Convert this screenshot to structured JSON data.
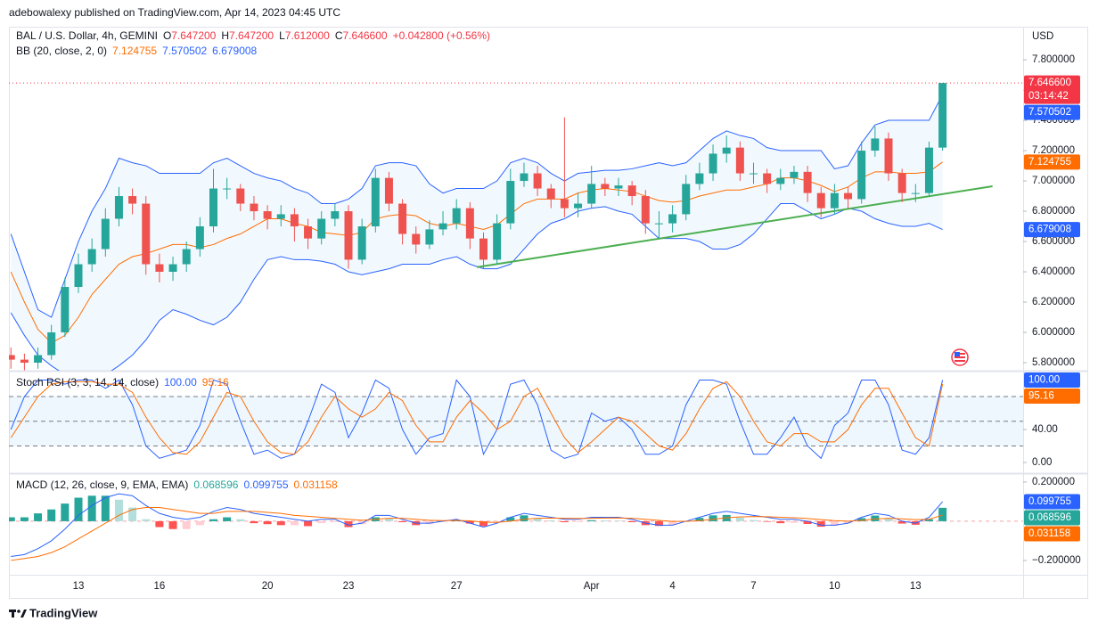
{
  "header": {
    "publisher": "adebowalexy published on TradingView.com, Apr 14, 2023 04:45 UTC",
    "footer": "TradingView"
  },
  "chart_data": [
    {
      "type": "candlestick",
      "title": "BAL / U.S. Dollar, 4h, GEMINI",
      "currency": "USD",
      "ohlc_header": [
        {
          "k": "O",
          "v": "7.647200"
        },
        {
          "k": "H",
          "v": "7.647200"
        },
        {
          "k": "L",
          "v": "7.612000"
        },
        {
          "k": "C",
          "v": "7.646600"
        }
      ],
      "change": "+0.042800 (+0.56%)",
      "header_color": "#f23645",
      "categories": [
        null,
        null,
        null,
        null,
        null,
        "13",
        null,
        null,
        null,
        null,
        null,
        "16",
        null,
        null,
        null,
        null,
        null,
        null,
        null,
        "20",
        null,
        null,
        null,
        null,
        null,
        "23",
        null,
        null,
        null,
        null,
        null,
        null,
        null,
        "27",
        null,
        null,
        null,
        null,
        null,
        null,
        null,
        null,
        null,
        "Apr",
        null,
        null,
        null,
        null,
        null,
        "4",
        null,
        null,
        null,
        null,
        null,
        "7",
        null,
        null,
        null,
        null,
        null,
        "10",
        null,
        null,
        null,
        null,
        null,
        "13",
        null,
        null
      ],
      "open": [
        5.85,
        5.82,
        5.8,
        5.85,
        6.0,
        6.3,
        6.45,
        6.55,
        6.75,
        6.9,
        6.85,
        6.45,
        6.4,
        6.45,
        6.55,
        6.7,
        6.95,
        6.95,
        6.85,
        6.8,
        6.75,
        6.78,
        6.7,
        6.62,
        6.75,
        6.8,
        6.48,
        6.7,
        7.02,
        6.85,
        6.65,
        6.58,
        6.68,
        6.72,
        6.82,
        6.62,
        6.48,
        6.72,
        7.0,
        7.05,
        6.95,
        6.88,
        6.82,
        6.85,
        6.98,
        6.95,
        6.97,
        6.9,
        6.72,
        6.72,
        6.78,
        6.98,
        7.05,
        7.18,
        7.22,
        7.05,
        7.05,
        6.98,
        7.02,
        7.06,
        6.92,
        6.82,
        6.92,
        6.88,
        7.2,
        7.28,
        7.05,
        6.92,
        6.92,
        7.22
      ],
      "high": [
        5.9,
        5.86,
        5.9,
        6.05,
        6.36,
        6.52,
        6.62,
        6.82,
        6.96,
        6.95,
        6.9,
        6.52,
        6.5,
        6.6,
        6.76,
        7.08,
        7.02,
        6.98,
        6.9,
        6.84,
        6.84,
        6.82,
        6.75,
        6.8,
        6.85,
        6.84,
        6.75,
        7.08,
        7.06,
        6.88,
        6.7,
        6.74,
        6.8,
        6.88,
        6.86,
        6.66,
        6.78,
        7.08,
        7.12,
        7.1,
        6.98,
        7.42,
        6.92,
        7.1,
        7.02,
        7.02,
        7.0,
        6.94,
        6.8,
        6.84,
        7.04,
        7.12,
        7.24,
        7.3,
        7.26,
        7.12,
        7.08,
        7.08,
        7.1,
        7.1,
        6.96,
        6.98,
        6.96,
        7.26,
        7.36,
        7.32,
        7.08,
        6.98,
        7.26,
        7.6472
      ],
      "low": [
        5.76,
        5.75,
        5.76,
        5.82,
        5.97,
        6.26,
        6.4,
        6.5,
        6.7,
        6.78,
        6.38,
        6.33,
        6.34,
        6.4,
        6.5,
        6.66,
        6.88,
        6.8,
        6.74,
        6.68,
        6.7,
        6.6,
        6.55,
        6.58,
        6.7,
        6.42,
        6.45,
        6.66,
        6.8,
        6.58,
        6.52,
        6.55,
        6.64,
        6.68,
        6.55,
        6.42,
        6.45,
        6.68,
        6.96,
        6.9,
        6.82,
        6.76,
        6.76,
        6.82,
        6.9,
        6.9,
        6.84,
        6.65,
        6.62,
        6.66,
        6.74,
        6.94,
        7.0,
        7.12,
        7.0,
        6.98,
        6.92,
        6.94,
        6.98,
        6.86,
        6.76,
        6.78,
        6.82,
        6.85,
        7.16,
        7.0,
        6.86,
        6.86,
        6.9,
        7.2
      ],
      "close": [
        5.82,
        5.8,
        5.85,
        6.0,
        6.3,
        6.45,
        6.55,
        6.75,
        6.9,
        6.85,
        6.45,
        6.4,
        6.45,
        6.55,
        6.7,
        6.95,
        6.95,
        6.85,
        6.8,
        6.75,
        6.78,
        6.7,
        6.62,
        6.75,
        6.8,
        6.48,
        6.7,
        7.02,
        6.85,
        6.65,
        6.58,
        6.68,
        6.72,
        6.82,
        6.62,
        6.48,
        6.72,
        7.0,
        7.05,
        6.95,
        6.88,
        6.82,
        6.85,
        6.98,
        6.95,
        6.97,
        6.9,
        6.72,
        6.72,
        6.78,
        6.98,
        7.05,
        7.18,
        7.22,
        7.05,
        7.05,
        6.98,
        7.02,
        7.06,
        6.92,
        6.82,
        6.92,
        6.88,
        7.2,
        7.28,
        7.05,
        6.92,
        6.92,
        7.22,
        7.6466
      ],
      "up_color": "#26a69a",
      "down_color": "#ef5350",
      "indicator": "BB (20, close, 2, 0)",
      "band_color": "#2196f3",
      "series": [
        {
          "color": "#ff6d00",
          "legend_value": "7.124755",
          "values": [
            6.4,
            6.2,
            6.02,
            5.93,
            5.98,
            6.1,
            6.25,
            6.35,
            6.45,
            6.5,
            6.52,
            6.55,
            6.58,
            6.58,
            6.56,
            6.58,
            6.62,
            6.65,
            6.7,
            6.75,
            6.75,
            6.72,
            6.7,
            6.66,
            6.65,
            6.64,
            6.66,
            6.75,
            6.77,
            6.78,
            6.77,
            6.72,
            6.7,
            6.72,
            6.7,
            6.68,
            6.71,
            6.78,
            6.85,
            6.88,
            6.88,
            6.88,
            6.92,
            6.94,
            6.95,
            6.94,
            6.93,
            6.9,
            6.87,
            6.86,
            6.87,
            6.9,
            6.92,
            6.94,
            6.94,
            6.96,
            6.98,
            7.02,
            7.02,
            7.0,
            6.97,
            6.93,
            6.96,
            7.02,
            7.06,
            7.06,
            7.05,
            7.05,
            7.06,
            7.124755
          ]
        },
        {
          "color": "#2962ff",
          "legend_value": "7.570502",
          "values": [
            6.65,
            6.4,
            6.15,
            6.1,
            6.35,
            6.6,
            6.8,
            6.95,
            7.15,
            7.12,
            7.1,
            7.05,
            7.05,
            7.05,
            7.05,
            7.12,
            7.15,
            7.1,
            7.05,
            7.02,
            7.0,
            6.95,
            6.92,
            6.85,
            6.85,
            6.88,
            6.95,
            7.1,
            7.12,
            7.12,
            7.1,
            6.98,
            6.92,
            6.95,
            6.95,
            6.95,
            7.0,
            7.12,
            7.15,
            7.12,
            7.05,
            7.0,
            7.05,
            7.06,
            7.07,
            7.07,
            7.08,
            7.1,
            7.12,
            7.1,
            7.12,
            7.2,
            7.28,
            7.33,
            7.3,
            7.28,
            7.22,
            7.2,
            7.2,
            7.2,
            7.2,
            7.08,
            7.1,
            7.25,
            7.37,
            7.4,
            7.4,
            7.4,
            7.4,
            7.570502
          ]
        },
        {
          "color": "#2962ff",
          "legend_value": "6.679008",
          "values": [
            6.13,
            5.98,
            5.85,
            5.78,
            5.72,
            5.7,
            5.7,
            5.72,
            5.78,
            5.85,
            5.95,
            6.08,
            6.15,
            6.12,
            6.08,
            6.05,
            6.1,
            6.2,
            6.35,
            6.48,
            6.5,
            6.48,
            6.48,
            6.47,
            6.45,
            6.4,
            6.38,
            6.4,
            6.42,
            6.45,
            6.45,
            6.45,
            6.48,
            6.5,
            6.45,
            6.42,
            6.42,
            6.45,
            6.55,
            6.65,
            6.72,
            6.75,
            6.8,
            6.82,
            6.83,
            6.8,
            6.78,
            6.7,
            6.62,
            6.62,
            6.62,
            6.6,
            6.55,
            6.55,
            6.58,
            6.65,
            6.75,
            6.85,
            6.85,
            6.8,
            6.75,
            6.78,
            6.82,
            6.8,
            6.75,
            6.72,
            6.7,
            6.7,
            6.72,
            6.679008
          ]
        }
      ],
      "trendline": {
        "x": [
          34.5,
          72.7
        ],
        "y": [
          6.43,
          6.965
        ],
        "color": "#4caf50"
      },
      "last_price": {
        "value": 7.6466,
        "label": "7.646600",
        "countdown": "03:14:42",
        "color": "#f23645"
      },
      "ylim": [
        5.753,
        8.018
      ],
      "yticks": [
        {
          "value": 7.8,
          "label": "7.800000"
        },
        {
          "value": 7.6,
          "label": "7.600000"
        },
        {
          "value": 7.4,
          "label": "7.400000"
        },
        {
          "value": 7.2,
          "label": "7.200000"
        },
        {
          "value": 7.0,
          "label": "7.000000"
        },
        {
          "value": 6.8,
          "label": "6.800000"
        },
        {
          "value": 6.6,
          "label": "6.600000"
        },
        {
          "value": 6.4,
          "label": "6.400000"
        },
        {
          "value": 6.2,
          "label": "6.200000"
        },
        {
          "value": 6.0,
          "label": "6.000000"
        },
        {
          "value": 5.8,
          "label": "5.800000"
        }
      ],
      "grid": false
    },
    {
      "type": "line",
      "title": "Stoch RSI (3, 3, 14, 14, close)",
      "series": [
        {
          "color": "#2962ff",
          "legend_value": "100.00",
          "values": [
            40,
            80,
            100,
            100,
            95,
            100,
            100,
            90,
            100,
            70,
            20,
            5,
            10,
            15,
            45,
            100,
            95,
            50,
            10,
            15,
            5,
            10,
            50,
            95,
            85,
            30,
            60,
            100,
            90,
            40,
            10,
            30,
            35,
            100,
            80,
            10,
            40,
            95,
            100,
            70,
            15,
            5,
            10,
            60,
            50,
            55,
            40,
            10,
            10,
            20,
            70,
            100,
            100,
            95,
            50,
            10,
            10,
            30,
            55,
            20,
            5,
            45,
            60,
            100,
            100,
            70,
            15,
            10,
            30,
            100
          ]
        },
        {
          "color": "#ff6d00",
          "legend_value": "95.16",
          "values": [
            30,
            55,
            80,
            95,
            98,
            98,
            98,
            95,
            95,
            85,
            55,
            30,
            12,
            10,
            25,
            55,
            85,
            80,
            50,
            25,
            12,
            10,
            25,
            55,
            80,
            65,
            55,
            65,
            85,
            75,
            45,
            25,
            25,
            55,
            75,
            60,
            40,
            50,
            80,
            90,
            60,
            30,
            12,
            25,
            40,
            55,
            50,
            35,
            20,
            15,
            35,
            65,
            90,
            98,
            80,
            50,
            25,
            20,
            35,
            35,
            25,
            25,
            40,
            70,
            90,
            90,
            60,
            30,
            20,
            95.16
          ]
        }
      ],
      "levels": [
        80,
        50,
        20
      ],
      "level_color": "#787b86",
      "band_color": "#2196f3",
      "ylim": [
        -11.9,
        109.2
      ],
      "yticks": [
        {
          "value": 40,
          "label": "40.00"
        },
        {
          "value": 0,
          "label": "0.00"
        }
      ]
    },
    {
      "type": "macd",
      "title": "MACD (12, 26, close, 9, EMA, EMA)",
      "histogram": {
        "legend_value": "0.068596",
        "colors": [
          "#26a69a",
          "#b2dfdb",
          "#ff5252",
          "#ffcdd2"
        ],
        "values": [
          0.02,
          0.02,
          0.04,
          0.06,
          0.09,
          0.12,
          0.13,
          0.13,
          0.11,
          0.07,
          0.01,
          -0.03,
          -0.04,
          -0.04,
          -0.02,
          0.01,
          0.02,
          0.01,
          -0.01,
          -0.015,
          -0.02,
          -0.02,
          -0.025,
          -0.01,
          -0.005,
          -0.03,
          -0.015,
          0.02,
          0.015,
          -0.005,
          -0.02,
          -0.015,
          -0.003,
          0.006,
          -0.012,
          -0.025,
          -0.004,
          0.02,
          0.03,
          0.015,
          0.004,
          -0.005,
          -0.004,
          0.005,
          0.004,
          0.003,
          -0.005,
          -0.02,
          -0.024,
          -0.019,
          0.001,
          0.017,
          0.03,
          0.032,
          0.018,
          0.006,
          -0.003,
          -0.01,
          -0.008,
          -0.014,
          -0.028,
          -0.023,
          -0.01,
          0.016,
          0.029,
          0.015,
          -0.012,
          -0.018,
          0.01,
          0.068596
        ]
      },
      "series": [
        {
          "color": "#2962ff",
          "legend_value": "0.099755",
          "values": [
            -0.18,
            -0.17,
            -0.14,
            -0.1,
            -0.04,
            0.03,
            0.08,
            0.12,
            0.14,
            0.13,
            0.08,
            0.04,
            0.02,
            0.01,
            0.02,
            0.05,
            0.07,
            0.06,
            0.04,
            0.03,
            0.02,
            0.01,
            0,
            0.01,
            0.01,
            -0.02,
            -0.01,
            0.03,
            0.03,
            0.01,
            -0.01,
            -0.01,
            0,
            0.01,
            -0.01,
            -0.03,
            -0.01,
            0.02,
            0.04,
            0.03,
            0.02,
            0.01,
            0.01,
            0.02,
            0.02,
            0.02,
            0.01,
            -0.01,
            -0.02,
            -0.02,
            0,
            0.02,
            0.04,
            0.05,
            0.04,
            0.03,
            0.02,
            0.01,
            0.01,
            0,
            -0.02,
            -0.02,
            -0.01,
            0.02,
            0.04,
            0.03,
            0,
            -0.01,
            0.02,
            0.099755
          ]
        },
        {
          "color": "#ff6d00",
          "legend_value": "0.031158",
          "values": [
            -0.2,
            -0.19,
            -0.18,
            -0.16,
            -0.13,
            -0.09,
            -0.05,
            -0.01,
            0.03,
            0.06,
            0.07,
            0.07,
            0.06,
            0.05,
            0.04,
            0.04,
            0.05,
            0.05,
            0.05,
            0.045,
            0.04,
            0.03,
            0.025,
            0.02,
            0.015,
            0.01,
            0.005,
            0.01,
            0.015,
            0.015,
            0.01,
            0.005,
            0.003,
            0.004,
            0.002,
            -0.005,
            -0.006,
            0,
            0.01,
            0.015,
            0.016,
            0.015,
            0.014,
            0.015,
            0.016,
            0.017,
            0.015,
            0.01,
            0.004,
            -0.001,
            -0.001,
            0.003,
            0.01,
            0.018,
            0.022,
            0.024,
            0.023,
            0.02,
            0.018,
            0.014,
            0.008,
            0.003,
            0,
            0.004,
            0.011,
            0.015,
            0.012,
            0.008,
            0.01,
            0.031158
          ]
        }
      ],
      "levels": [
        0
      ],
      "level_color": "#f7a1a8",
      "ylim": [
        -0.273,
        0.236
      ],
      "yticks": [
        {
          "value": 0.2,
          "label": "0.200000"
        },
        {
          "value": -0.2,
          "label": "−0.200000"
        }
      ]
    }
  ]
}
